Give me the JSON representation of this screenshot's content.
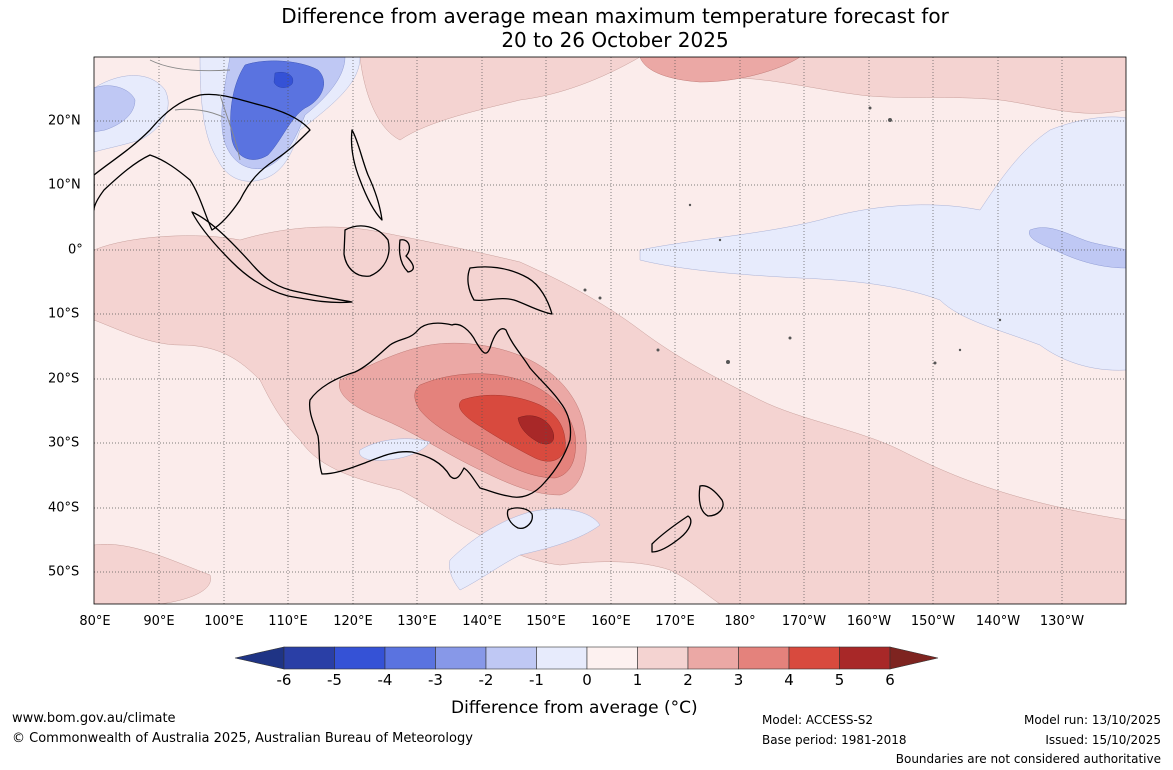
{
  "title": {
    "line1": "Difference from average mean maximum temperature forecast for",
    "line2": "20 to 26 October 2025"
  },
  "map": {
    "lon_labels": [
      "80°E",
      "90°E",
      "100°E",
      "110°E",
      "120°E",
      "130°E",
      "140°E",
      "150°E",
      "160°E",
      "170°E",
      "180°",
      "170°W",
      "160°W",
      "150°W",
      "140°W",
      "130°W"
    ],
    "lat_labels": [
      "20°N",
      "10°N",
      "0°",
      "10°S",
      "20°S",
      "30°S",
      "40°S",
      "50°S"
    ],
    "region": "Australia and surrounding Pacific / Indian Ocean",
    "background_color": "#fbeceb"
  },
  "colorbar": {
    "tick_labels": [
      "-6",
      "-5",
      "-4",
      "-3",
      "-2",
      "-1",
      "0",
      "1",
      "2",
      "3",
      "4",
      "5",
      "6"
    ],
    "colors": [
      "#2a3fa6",
      "#3552d6",
      "#5a73e0",
      "#8798e8",
      "#bfc8f4",
      "#e7ebfc",
      "#fdf1f0",
      "#f4d3d1",
      "#eba8a5",
      "#e4827c",
      "#d84a3e",
      "#a82828"
    ],
    "low_extend_color": "#1f3485",
    "high_extend_color": "#7e2420",
    "title": "Difference from average (°C)"
  },
  "footer": {
    "website": "www.bom.gov.au/climate",
    "copyright": "© Commonwealth of Australia 2025, Australian Bureau of Meteorology",
    "model": "Model: ACCESS-S2",
    "base_period": "Base period: 1981-2018",
    "model_run": "Model run: 13/10/2025",
    "issued": "Issued: 15/10/2025",
    "disclaimer": "Boundaries are not considered authoritative"
  }
}
